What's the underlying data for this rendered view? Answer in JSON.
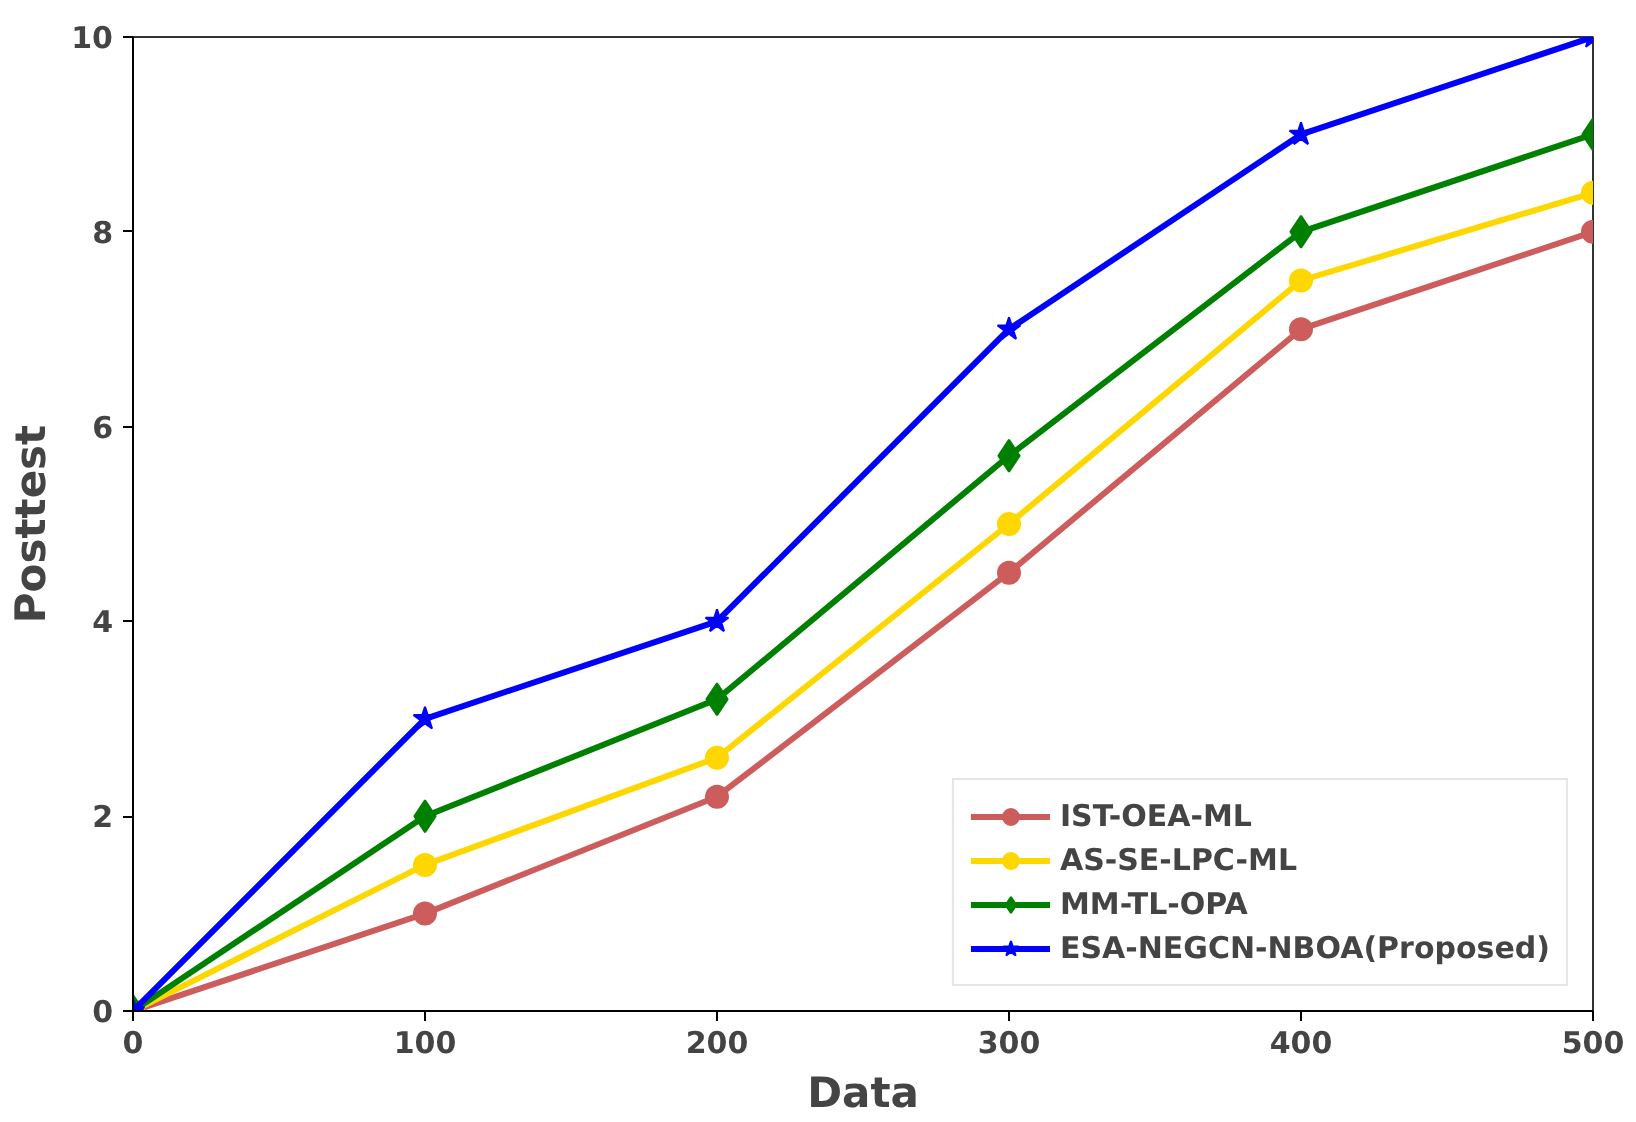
{
  "chart_data": {
    "type": "line",
    "xlabel": "Data",
    "ylabel": "Posttest",
    "x": [
      0,
      100,
      200,
      300,
      400,
      500
    ],
    "xlim": [
      0,
      500
    ],
    "xticks": [
      0,
      100,
      200,
      300,
      400,
      500
    ],
    "ylim": [
      0,
      10
    ],
    "yticks": [
      0,
      2,
      4,
      6,
      8,
      10
    ],
    "grid": false,
    "legend": "bottom right",
    "line_style": "solid",
    "series": [
      {
        "name": "IST-OEA-ML",
        "color": "#cd5c5c",
        "marker": "circle",
        "values": [
          0,
          1,
          2.2,
          4.5,
          7,
          8
        ]
      },
      {
        "name": "AS-SE-LPC-ML",
        "color": "#ffd700",
        "marker": "circle",
        "values": [
          0,
          1.5,
          2.6,
          5,
          7.5,
          8.4
        ]
      },
      {
        "name": "MM-TL-OPA",
        "color": "#008000",
        "marker": "diamond",
        "values": [
          0,
          2,
          3.2,
          5.7,
          8,
          9
        ]
      },
      {
        "name": "ESA-NEGCN-NBOA(Proposed)",
        "color": "#0000ff",
        "marker": "star",
        "values": [
          0,
          3,
          4,
          7,
          9,
          10
        ]
      }
    ]
  }
}
